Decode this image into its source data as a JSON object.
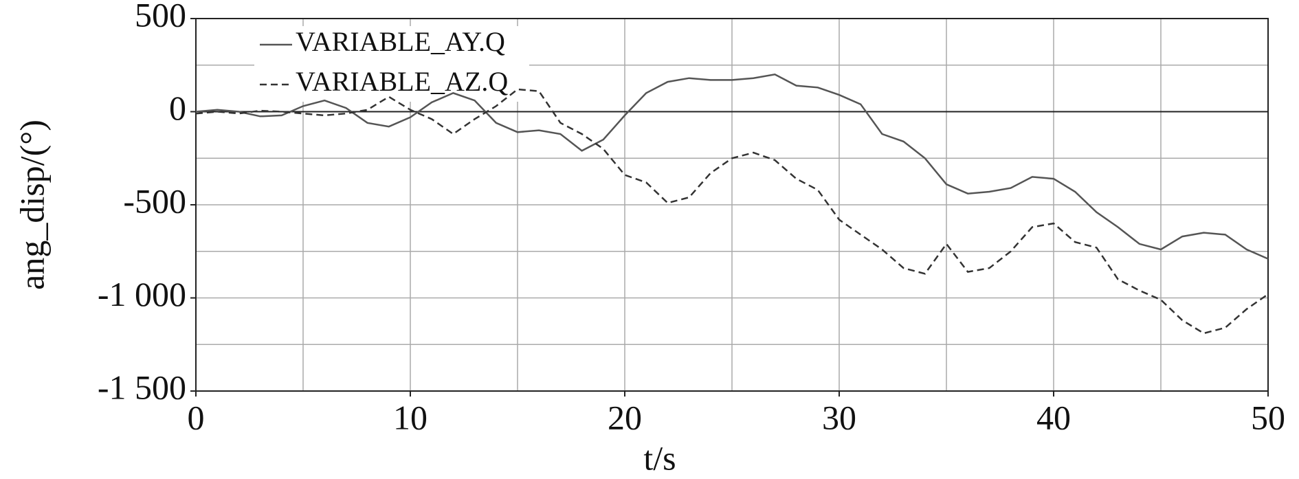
{
  "chart_data": {
    "type": "line",
    "xlabel": "t/s",
    "ylabel": "ang_disp/(°)",
    "x": [
      0,
      1,
      2,
      3,
      4,
      5,
      6,
      7,
      8,
      9,
      10,
      11,
      12,
      13,
      14,
      15,
      16,
      17,
      18,
      19,
      20,
      21,
      22,
      23,
      24,
      25,
      26,
      27,
      28,
      29,
      30,
      31,
      32,
      33,
      34,
      35,
      36,
      37,
      38,
      39,
      40,
      41,
      42,
      43,
      44,
      45,
      46,
      47,
      48,
      49,
      50
    ],
    "series": [
      {
        "name": "VARIABLE_AY.Q",
        "color": "#555555",
        "dash": false,
        "values": [
          0,
          10,
          0,
          -25,
          -20,
          30,
          60,
          20,
          -60,
          -80,
          -30,
          50,
          100,
          60,
          -60,
          -110,
          -100,
          -120,
          -210,
          -150,
          -20,
          100,
          160,
          180,
          170,
          170,
          180,
          200,
          140,
          130,
          90,
          40,
          -120,
          -160,
          -250,
          -390,
          -440,
          -430,
          -410,
          -350,
          -360,
          -430,
          -540,
          -620,
          -710,
          -740,
          -670,
          -650,
          -660,
          -740,
          -790
        ]
      },
      {
        "name": "VARIABLE_AZ.Q",
        "color": "#333333",
        "dash": true,
        "values": [
          -10,
          0,
          -10,
          5,
          0,
          -10,
          -20,
          -10,
          10,
          80,
          10,
          -40,
          -120,
          -40,
          30,
          120,
          110,
          -60,
          -120,
          -200,
          -340,
          -380,
          -490,
          -460,
          -330,
          -250,
          -220,
          -260,
          -360,
          -420,
          -580,
          -660,
          -740,
          -840,
          -870,
          -710,
          -860,
          -840,
          -750,
          -620,
          -600,
          -700,
          -730,
          -900,
          -960,
          -1010,
          -1120,
          -1190,
          -1160,
          -1060,
          -980
        ]
      }
    ],
    "xlim": [
      0,
      50
    ],
    "xticks": [
      0,
      10,
      20,
      30,
      40,
      50
    ],
    "ylim": [
      -1500,
      500
    ],
    "yticks": [
      500,
      0,
      -500,
      {
        "value": -1000,
        "label": "-1 000"
      },
      {
        "value": -1500,
        "label": "-1 500"
      }
    ],
    "x_grid": [
      5,
      10,
      15,
      20,
      25,
      30,
      35,
      40,
      45
    ],
    "y_grid": [
      250,
      0,
      -250,
      -500,
      -750,
      -1000,
      -1250
    ],
    "grid": true
  }
}
